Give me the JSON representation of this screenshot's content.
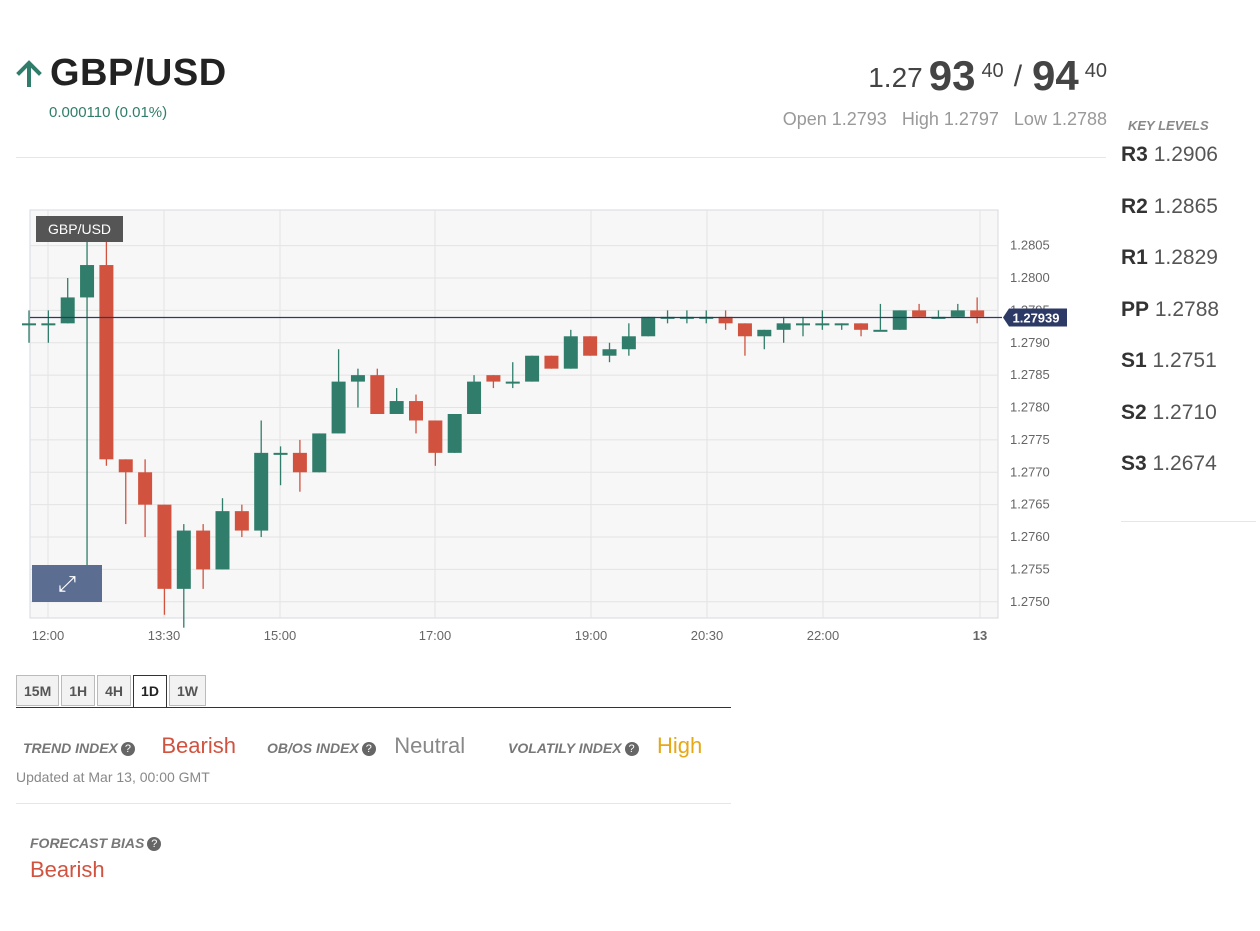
{
  "header": {
    "pair": "GBP/USD",
    "change": "0.000110 (0.01%)",
    "direction_icon": "arrow-up-icon",
    "bid": {
      "prefix": "1.27",
      "big": "93",
      "sup": "40"
    },
    "separator": "/",
    "ask": {
      "big": "94",
      "sup": "40"
    },
    "open": "Open 1.2793",
    "high": "High 1.2797",
    "low": "Low 1.2788"
  },
  "key_levels": {
    "title": "KEY LEVELS",
    "levels": [
      {
        "name": "R3",
        "value": "1.2906"
      },
      {
        "name": "R2",
        "value": "1.2865"
      },
      {
        "name": "R1",
        "value": "1.2829"
      },
      {
        "name": "PP",
        "value": "1.2788"
      },
      {
        "name": "S1",
        "value": "1.2751"
      },
      {
        "name": "S2",
        "value": "1.2710"
      },
      {
        "name": "S3",
        "value": "1.2674"
      }
    ]
  },
  "chart_label": "GBP/USD",
  "expand_icon": "expand-icon",
  "colors": {
    "up": "#2f7d6a",
    "down": "#d1533f",
    "price_line": "#2e3a66",
    "bearish": "#d1533f",
    "neutral": "#888888",
    "high": "#e6a817"
  },
  "chart_data": {
    "type": "candlestick",
    "x_ticks": [
      "12:00",
      "13:30",
      "15:00",
      "17:00",
      "19:00",
      "20:30",
      "22:00",
      "13"
    ],
    "y_ticks": [
      "1.2805",
      "1.2800",
      "1.2795",
      "1.2790",
      "1.2785",
      "1.2780",
      "1.2775",
      "1.2770",
      "1.2765",
      "1.2760",
      "1.2755",
      "1.2750"
    ],
    "ylim": [
      1.27475,
      1.28105
    ],
    "current_price": 1.27939,
    "current_price_label": "1.27939",
    "candles": [
      [
        1.2793,
        1.2793,
        1.2795,
        1.279
      ],
      [
        1.2793,
        1.2793,
        1.2795,
        1.279
      ],
      [
        1.2793,
        1.2797,
        1.28,
        1.2793
      ],
      [
        1.2797,
        1.2802,
        1.2808,
        1.2755
      ],
      [
        1.2802,
        1.2772,
        1.2806,
        1.2771
      ],
      [
        1.2772,
        1.277,
        1.2772,
        1.2762
      ],
      [
        1.277,
        1.2765,
        1.2772,
        1.276
      ],
      [
        1.2765,
        1.2752,
        1.2765,
        1.2748
      ],
      [
        1.2752,
        1.2761,
        1.2762,
        1.2746
      ],
      [
        1.2761,
        1.2755,
        1.2762,
        1.2752
      ],
      [
        1.2755,
        1.2764,
        1.2766,
        1.2755
      ],
      [
        1.2764,
        1.2761,
        1.2765,
        1.276
      ],
      [
        1.2761,
        1.2773,
        1.2778,
        1.276
      ],
      [
        1.2773,
        1.2773,
        1.2774,
        1.2768
      ],
      [
        1.2773,
        1.277,
        1.2775,
        1.2767
      ],
      [
        1.277,
        1.2776,
        1.2776,
        1.277
      ],
      [
        1.2776,
        1.2784,
        1.2789,
        1.2776
      ],
      [
        1.2784,
        1.2785,
        1.2786,
        1.278
      ],
      [
        1.2785,
        1.2779,
        1.2786,
        1.2779
      ],
      [
        1.2779,
        1.2781,
        1.2783,
        1.2779
      ],
      [
        1.2781,
        1.2778,
        1.2782,
        1.2776
      ],
      [
        1.2778,
        1.2773,
        1.2778,
        1.2771
      ],
      [
        1.2773,
        1.2779,
        1.2779,
        1.2773
      ],
      [
        1.2779,
        1.2784,
        1.2785,
        1.2779
      ],
      [
        1.2785,
        1.2784,
        1.2785,
        1.2783
      ],
      [
        1.2784,
        1.2784,
        1.2787,
        1.2783
      ],
      [
        1.2784,
        1.2788,
        1.2788,
        1.2784
      ],
      [
        1.2788,
        1.2786,
        1.2788,
        1.2786
      ],
      [
        1.2786,
        1.2791,
        1.2792,
        1.2786
      ],
      [
        1.2791,
        1.2788,
        1.2791,
        1.2788
      ],
      [
        1.2788,
        1.2789,
        1.279,
        1.2787
      ],
      [
        1.2789,
        1.2791,
        1.2793,
        1.2788
      ],
      [
        1.2791,
        1.2794,
        1.2794,
        1.2791
      ],
      [
        1.2794,
        1.2794,
        1.2795,
        1.2793
      ],
      [
        1.2794,
        1.2794,
        1.2795,
        1.2793
      ],
      [
        1.2794,
        1.2794,
        1.2795,
        1.2793
      ],
      [
        1.2794,
        1.2793,
        1.2795,
        1.2792
      ],
      [
        1.2793,
        1.2791,
        1.2793,
        1.2788
      ],
      [
        1.2791,
        1.2792,
        1.2792,
        1.2789
      ],
      [
        1.2792,
        1.2793,
        1.2794,
        1.279
      ],
      [
        1.2793,
        1.2793,
        1.2794,
        1.2791
      ],
      [
        1.2793,
        1.2793,
        1.2795,
        1.2792
      ],
      [
        1.2793,
        1.2793,
        1.2793,
        1.2792
      ],
      [
        1.2793,
        1.2792,
        1.2793,
        1.2791
      ],
      [
        1.2792,
        1.2792,
        1.2796,
        1.2792
      ],
      [
        1.2792,
        1.2795,
        1.2795,
        1.2792
      ],
      [
        1.2795,
        1.2794,
        1.2796,
        1.2794
      ],
      [
        1.2794,
        1.2794,
        1.2795,
        1.2794
      ],
      [
        1.2794,
        1.2795,
        1.2796,
        1.2794
      ],
      [
        1.2795,
        1.2794,
        1.2797,
        1.2793
      ]
    ]
  },
  "timeframe_tabs": [
    "15M",
    "1H",
    "4H",
    "1D",
    "1W"
  ],
  "active_tab": "1D",
  "indices": {
    "trend_label": "TREND INDEX",
    "trend_value": "Bearish",
    "obos_label": "OB/OS INDEX",
    "obos_value": "Neutral",
    "vol_label": "VOLATILY INDEX",
    "vol_value": "High",
    "help_icon": "question-circle-icon"
  },
  "updated": "Updated at Mar 13, 00:00 GMT",
  "forecast": {
    "label": "FORECAST BIAS",
    "value": "Bearish"
  }
}
